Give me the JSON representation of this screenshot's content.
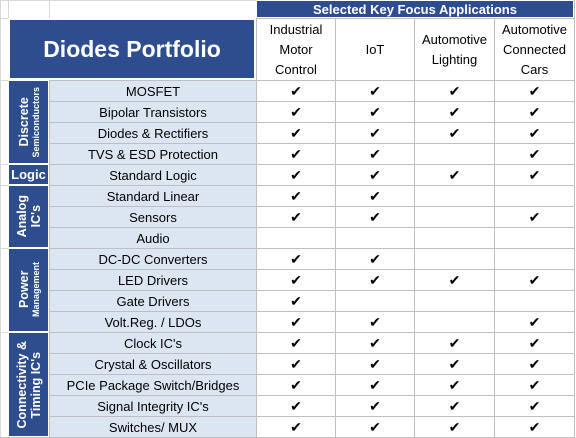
{
  "title": "Diodes Portfolio",
  "applications_header": "Selected Key Focus Applications",
  "columns": [
    {
      "label": "Industrial Motor Control",
      "lines": [
        "Industrial",
        "Motor",
        "Control"
      ]
    },
    {
      "label": "IoT",
      "lines": [
        "IoT"
      ]
    },
    {
      "label": "Automotive Lighting",
      "lines": [
        "Automotive",
        "Lighting"
      ]
    },
    {
      "label": "Automotive Connected Cars",
      "lines": [
        "Automotive",
        "Connected",
        "Cars"
      ]
    }
  ],
  "check_glyph": "✔",
  "categories": [
    {
      "name": "Discrete",
      "sub": "Semiconductors",
      "rows": 4
    },
    {
      "name": "Logic",
      "sub": "",
      "rows": 1
    },
    {
      "name": "Analog",
      "sub": "IC's",
      "rows": 3
    },
    {
      "name": "Power",
      "sub": "Management",
      "rows": 4
    },
    {
      "name": "Connectivity &",
      "sub": "Timing IC's",
      "rows": 5
    }
  ],
  "products": [
    {
      "name": "MOSFET",
      "checks": [
        true,
        true,
        true,
        true
      ]
    },
    {
      "name": "Bipolar Transistors",
      "checks": [
        true,
        true,
        true,
        true
      ]
    },
    {
      "name": "Diodes & Rectifiers",
      "checks": [
        true,
        true,
        true,
        true
      ]
    },
    {
      "name": "TVS & ESD Protection",
      "checks": [
        true,
        true,
        false,
        true
      ]
    },
    {
      "name": "Standard Logic",
      "checks": [
        true,
        true,
        true,
        true
      ]
    },
    {
      "name": "Standard Linear",
      "checks": [
        true,
        true,
        false,
        false
      ]
    },
    {
      "name": "Sensors",
      "checks": [
        true,
        true,
        false,
        true
      ]
    },
    {
      "name": "Audio",
      "checks": [
        false,
        false,
        false,
        false
      ]
    },
    {
      "name": "DC-DC Converters",
      "checks": [
        true,
        true,
        false,
        false
      ]
    },
    {
      "name": "LED Drivers",
      "checks": [
        true,
        true,
        true,
        true
      ]
    },
    {
      "name": "Gate Drivers",
      "checks": [
        true,
        false,
        false,
        false
      ]
    },
    {
      "name": "Volt.Reg. / LDOs",
      "checks": [
        true,
        true,
        false,
        true
      ]
    },
    {
      "name": "Clock IC's",
      "checks": [
        true,
        true,
        true,
        true
      ]
    },
    {
      "name": "Crystal & Oscillators",
      "checks": [
        true,
        true,
        true,
        true
      ]
    },
    {
      "name": "PCIe Package Switch/Bridges",
      "checks": [
        true,
        true,
        true,
        true
      ]
    },
    {
      "name": "Signal Integrity IC's",
      "checks": [
        true,
        true,
        true,
        true
      ]
    },
    {
      "name": "Switches/ MUX",
      "checks": [
        true,
        true,
        true,
        true
      ]
    }
  ],
  "colors": {
    "header_blue": "#2e4d8e",
    "product_fill": "#dce6f2",
    "grid_line": "#bfbfbf"
  }
}
